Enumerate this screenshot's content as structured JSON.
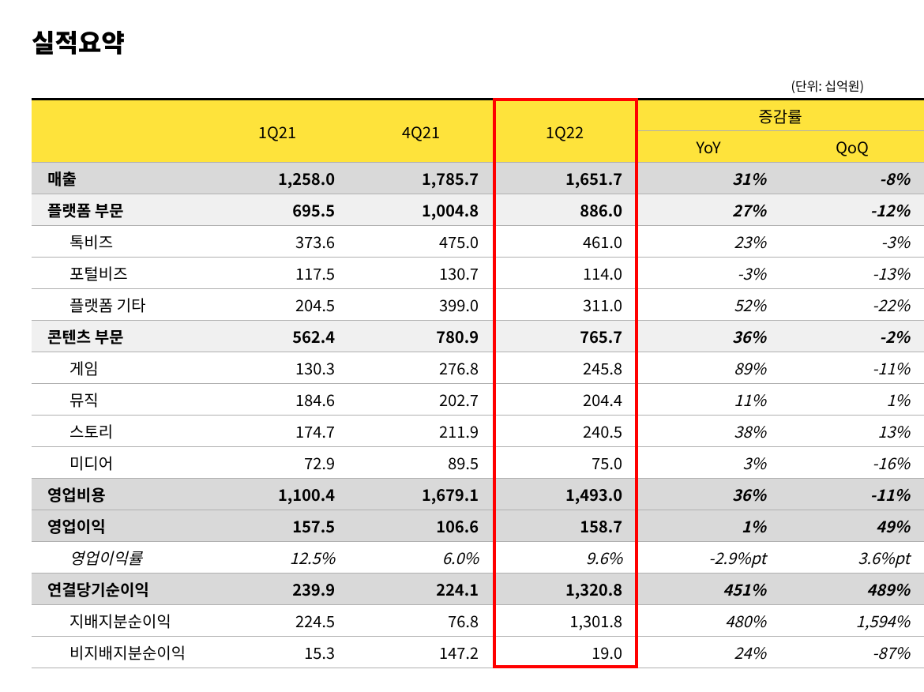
{
  "title": "실적요약",
  "unit_label": "(단위: 십억원)",
  "columns": {
    "c0": "",
    "c1": "1Q21",
    "c2": "4Q21",
    "c3": "1Q22",
    "group": "증감률",
    "c4": "YoY",
    "c5": "QoQ"
  },
  "rows": [
    {
      "style": "header-row",
      "indent": false,
      "italic": false,
      "label": "매출",
      "v1": "1,258.0",
      "v2": "1,785.7",
      "v3": "1,651.7",
      "yoy": "31%",
      "qoq": "-8%"
    },
    {
      "style": "sub-header-row",
      "indent": false,
      "italic": false,
      "label": "플랫폼 부문",
      "v1": "695.5",
      "v2": "1,004.8",
      "v3": "886.0",
      "yoy": "27%",
      "qoq": "-12%"
    },
    {
      "style": "",
      "indent": true,
      "italic": false,
      "label": "톡비즈",
      "v1": "373.6",
      "v2": "475.0",
      "v3": "461.0",
      "yoy": "23%",
      "qoq": "-3%"
    },
    {
      "style": "",
      "indent": true,
      "italic": false,
      "label": "포털비즈",
      "v1": "117.5",
      "v2": "130.7",
      "v3": "114.0",
      "yoy": "-3%",
      "qoq": "-13%"
    },
    {
      "style": "",
      "indent": true,
      "italic": false,
      "label": "플랫폼 기타",
      "v1": "204.5",
      "v2": "399.0",
      "v3": "311.0",
      "yoy": "52%",
      "qoq": "-22%"
    },
    {
      "style": "sub-header-row",
      "indent": false,
      "italic": false,
      "label": "콘텐츠 부문",
      "v1": "562.4",
      "v2": "780.9",
      "v3": "765.7",
      "yoy": "36%",
      "qoq": "-2%"
    },
    {
      "style": "",
      "indent": true,
      "italic": false,
      "label": "게임",
      "v1": "130.3",
      "v2": "276.8",
      "v3": "245.8",
      "yoy": "89%",
      "qoq": "-11%"
    },
    {
      "style": "",
      "indent": true,
      "italic": false,
      "label": "뮤직",
      "v1": "184.6",
      "v2": "202.7",
      "v3": "204.4",
      "yoy": "11%",
      "qoq": "1%"
    },
    {
      "style": "",
      "indent": true,
      "italic": false,
      "label": "스토리",
      "v1": "174.7",
      "v2": "211.9",
      "v3": "240.5",
      "yoy": "38%",
      "qoq": "13%"
    },
    {
      "style": "",
      "indent": true,
      "italic": false,
      "label": "미디어",
      "v1": "72.9",
      "v2": "89.5",
      "v3": "75.0",
      "yoy": "3%",
      "qoq": "-16%"
    },
    {
      "style": "header-row",
      "indent": false,
      "italic": false,
      "label": "영업비용",
      "v1": "1,100.4",
      "v2": "1,679.1",
      "v3": "1,493.0",
      "yoy": "36%",
      "qoq": "-11%"
    },
    {
      "style": "header-row",
      "indent": false,
      "italic": false,
      "label": "영업이익",
      "v1": "157.5",
      "v2": "106.6",
      "v3": "158.7",
      "yoy": "1%",
      "qoq": "49%"
    },
    {
      "style": "italic-row",
      "indent": true,
      "italic": true,
      "label": "영업이익률",
      "v1": "12.5%",
      "v2": "6.0%",
      "v3": "9.6%",
      "yoy": "-2.9%pt",
      "qoq": "3.6%pt"
    },
    {
      "style": "header-row",
      "indent": false,
      "italic": false,
      "label": "연결당기순이익",
      "v1": "239.9",
      "v2": "224.1",
      "v3": "1,320.8",
      "yoy": "451%",
      "qoq": "489%"
    },
    {
      "style": "",
      "indent": true,
      "italic": false,
      "label": "지배지분순이익",
      "v1": "224.5",
      "v2": "76.8",
      "v3": "1,301.8",
      "yoy": "480%",
      "qoq": "1,594%"
    },
    {
      "style": "",
      "indent": true,
      "italic": false,
      "label": "비지배지분순이익",
      "v1": "15.3",
      "v2": "147.2",
      "v3": "19.0",
      "yoy": "24%",
      "qoq": "-87%"
    }
  ],
  "colors": {
    "header_bg": "#fee33b",
    "highlight_border": "#ff0000",
    "row_major_bg": "#d9d9d9",
    "row_sub_bg": "#f0f0f0",
    "border": "#b0b0b0",
    "top_border": "#000000"
  },
  "layout": {
    "highlighted_column_index": 3
  }
}
